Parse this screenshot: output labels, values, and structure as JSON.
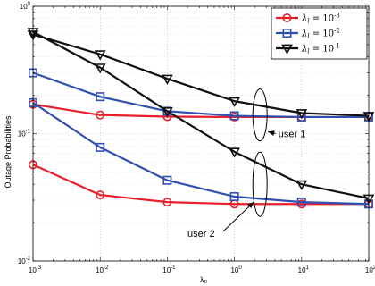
{
  "chart_data": {
    "type": "line",
    "title": "",
    "xlabel": "λ₀",
    "ylabel": "Outage Probabilities",
    "xscale": "log",
    "yscale": "log",
    "xlim": [
      0.001,
      100
    ],
    "ylim": [
      0.01,
      1
    ],
    "grid": true,
    "legend_position": "top-right",
    "x": [
      0.001,
      0.01,
      0.1,
      1,
      10,
      100
    ],
    "x_tick_labels": [
      {
        "base": "10",
        "exp": "-3"
      },
      {
        "base": "10",
        "exp": "-2"
      },
      {
        "base": "10",
        "exp": "-1"
      },
      {
        "base": "10",
        "exp": "0"
      },
      {
        "base": "10",
        "exp": "1"
      },
      {
        "base": "10",
        "exp": "2"
      }
    ],
    "y_tick_labels": [
      {
        "base": "10",
        "exp": "-2"
      },
      {
        "base": "10",
        "exp": "-1"
      },
      {
        "base": "10",
        "exp": "0"
      }
    ],
    "legend": [
      {
        "prefix": "λ",
        "sub": "l",
        "eq": " = 10",
        "exp": "-3",
        "color": "#e8202a",
        "marker": "circle"
      },
      {
        "prefix": "λ",
        "sub": "l",
        "eq": " = 10",
        "exp": "-2",
        "color": "#3050b0",
        "marker": "square"
      },
      {
        "prefix": "λ",
        "sub": "l",
        "eq": " = 10",
        "exp": "-1",
        "color": "#111111",
        "marker": "triangle-down"
      }
    ],
    "series": [
      {
        "color": "#e8202a",
        "marker": "circle",
        "group": "user 1",
        "values": [
          0.17,
          0.14,
          0.136,
          0.135,
          0.135,
          0.135
        ]
      },
      {
        "color": "#3050b0",
        "marker": "square",
        "group": "user 1",
        "values": [
          0.3,
          0.195,
          0.15,
          0.138,
          0.135,
          0.135
        ]
      },
      {
        "color": "#111111",
        "marker": "triangle-down",
        "group": "user 1",
        "values": [
          0.6,
          0.42,
          0.27,
          0.18,
          0.145,
          0.138
        ]
      },
      {
        "color": "#e8202a",
        "marker": "circle",
        "group": "user 2",
        "values": [
          0.057,
          0.033,
          0.029,
          0.028,
          0.028,
          0.028
        ]
      },
      {
        "color": "#3050b0",
        "marker": "square",
        "group": "user 2",
        "values": [
          0.175,
          0.078,
          0.043,
          0.032,
          0.029,
          0.028
        ]
      },
      {
        "color": "#111111",
        "marker": "triangle-down",
        "group": "user 2",
        "values": [
          0.63,
          0.33,
          0.15,
          0.072,
          0.04,
          0.031
        ]
      }
    ],
    "annotations": [
      {
        "text": "user 1",
        "ellipse_x": 2.4,
        "ellipse_y": 0.14,
        "label_x": 4.5,
        "label_y": 0.1
      },
      {
        "text": "user 2",
        "ellipse_x": 2.4,
        "ellipse_y": 0.04,
        "label_x": 0.2,
        "label_y": 0.0165
      }
    ]
  }
}
